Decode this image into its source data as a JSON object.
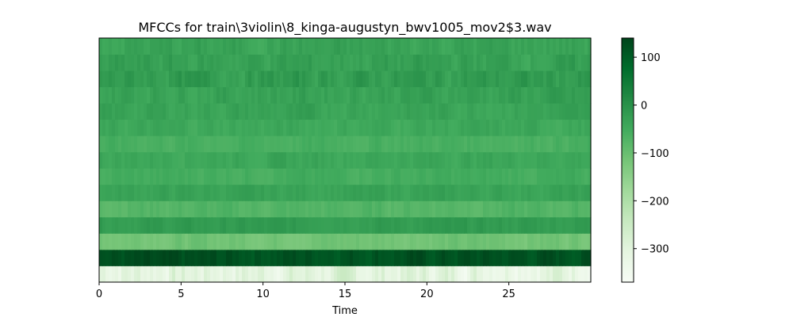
{
  "chart_data": {
    "type": "heatmap",
    "title": "MFCCs for train\\3violin\\8_kinga-augustyn_bwv1005_mov2$3.wav",
    "xlabel": "Time",
    "ylabel": "",
    "xlim": [
      0,
      30
    ],
    "x_ticks": [
      0,
      5,
      10,
      15,
      20,
      25
    ],
    "x_tick_labels": [
      "0",
      "5",
      "10",
      "15",
      "20",
      "25"
    ],
    "n_coefficients": 15,
    "coefficient_rows_bottom_to_top": [
      {
        "index": 0,
        "mean": -300,
        "variation": 45
      },
      {
        "index": 1,
        "mean": 120,
        "variation": 20
      },
      {
        "index": 2,
        "mean": -110,
        "variation": 15
      },
      {
        "index": 3,
        "mean": -20,
        "variation": 12
      },
      {
        "index": 4,
        "mean": -75,
        "variation": 14
      },
      {
        "index": 5,
        "mean": -35,
        "variation": 12
      },
      {
        "index": 6,
        "mean": -55,
        "variation": 12
      },
      {
        "index": 7,
        "mean": -40,
        "variation": 13
      },
      {
        "index": 8,
        "mean": -60,
        "variation": 12
      },
      {
        "index": 9,
        "mean": -45,
        "variation": 14
      },
      {
        "index": 10,
        "mean": -35,
        "variation": 15
      },
      {
        "index": 11,
        "mean": -30,
        "variation": 18
      },
      {
        "index": 12,
        "mean": -20,
        "variation": 22
      },
      {
        "index": 13,
        "mean": -30,
        "variation": 20
      },
      {
        "index": 14,
        "mean": -35,
        "variation": 18
      }
    ],
    "colorbar": {
      "colormap": "Greens",
      "range": [
        -370,
        140
      ],
      "ticks": [
        100,
        0,
        -100,
        -200,
        -300
      ],
      "tick_labels": [
        "100",
        "0",
        "−100",
        "−200",
        "−300"
      ]
    },
    "colors": {
      "light": "#f7fcf5",
      "dark": "#00441b"
    }
  }
}
